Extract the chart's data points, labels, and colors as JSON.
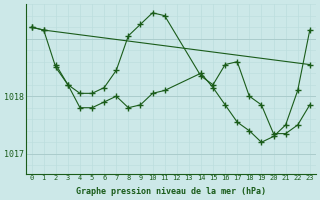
{
  "bg_color": "#cce8e8",
  "line_color": "#1a5c1a",
  "grid_color_major": "#aacccc",
  "grid_color_minor": "#bbdddd",
  "xlabel": "Graphe pression niveau de la mer (hPa)",
  "ylim": [
    1016.65,
    1019.6
  ],
  "xlim": [
    -0.5,
    23.5
  ],
  "yticks": [
    1017,
    1018
  ],
  "xticks": [
    0,
    1,
    2,
    3,
    4,
    5,
    6,
    7,
    8,
    9,
    10,
    11,
    12,
    13,
    14,
    15,
    16,
    17,
    18,
    19,
    20,
    21,
    22,
    23
  ],
  "line_trend_x": [
    0,
    1,
    23
  ],
  "line_trend_y": [
    1019.2,
    1019.15,
    1018.55
  ],
  "line_bell_x": [
    0,
    1,
    2,
    3,
    4,
    5,
    6,
    7,
    8,
    9,
    10,
    11,
    14,
    15,
    16,
    17,
    18,
    19,
    20,
    21,
    22,
    23
  ],
  "line_bell_y": [
    1019.2,
    1019.15,
    1018.5,
    1018.2,
    1018.05,
    1018.05,
    1018.15,
    1018.45,
    1019.05,
    1019.25,
    1019.45,
    1019.4,
    1018.35,
    1018.2,
    1018.55,
    1018.6,
    1018.0,
    1017.85,
    1017.35,
    1017.35,
    1017.5,
    1017.85
  ],
  "line_zigzag_x": [
    2,
    3,
    4,
    5,
    6,
    7,
    8,
    9,
    10,
    11,
    14,
    15,
    16,
    17,
    18,
    19,
    20,
    21,
    22,
    23
  ],
  "line_zigzag_y": [
    1018.55,
    1018.2,
    1017.8,
    1017.8,
    1017.9,
    1018.0,
    1017.8,
    1017.85,
    1018.05,
    1018.1,
    1018.4,
    1018.15,
    1017.85,
    1017.55,
    1017.4,
    1017.2,
    1017.3,
    1017.5,
    1018.1,
    1019.15
  ]
}
